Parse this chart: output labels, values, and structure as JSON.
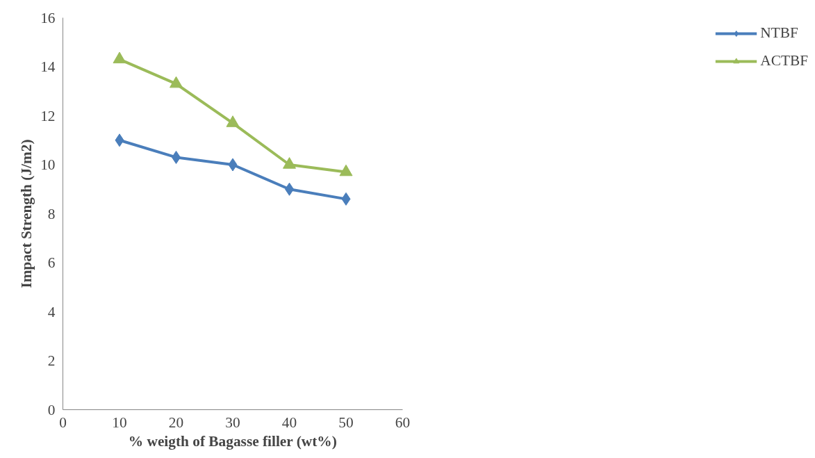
{
  "chart_data": {
    "type": "line",
    "xlabel": "% weigth of Bagasse filler (wt%)",
    "ylabel": "Impact Strength (J/m2)",
    "x": [
      10,
      20,
      30,
      40,
      50
    ],
    "series": [
      {
        "name": "NTBF",
        "color": "#4a7ebb",
        "marker": "diamond",
        "values": [
          11,
          10.3,
          10,
          9,
          8.6
        ]
      },
      {
        "name": "ACTBF",
        "color": "#9bbb59",
        "marker": "triangle",
        "values": [
          14.3,
          13.3,
          11.7,
          10,
          9.7
        ]
      }
    ],
    "xlim": [
      0,
      60
    ],
    "xticks": [
      0,
      10,
      20,
      30,
      40,
      50,
      60
    ],
    "ylim": [
      0,
      16
    ],
    "yticks": [
      0,
      2,
      4,
      6,
      8,
      10,
      12,
      14,
      16
    ],
    "grid": false,
    "legend": "right",
    "line_style": "solid"
  }
}
